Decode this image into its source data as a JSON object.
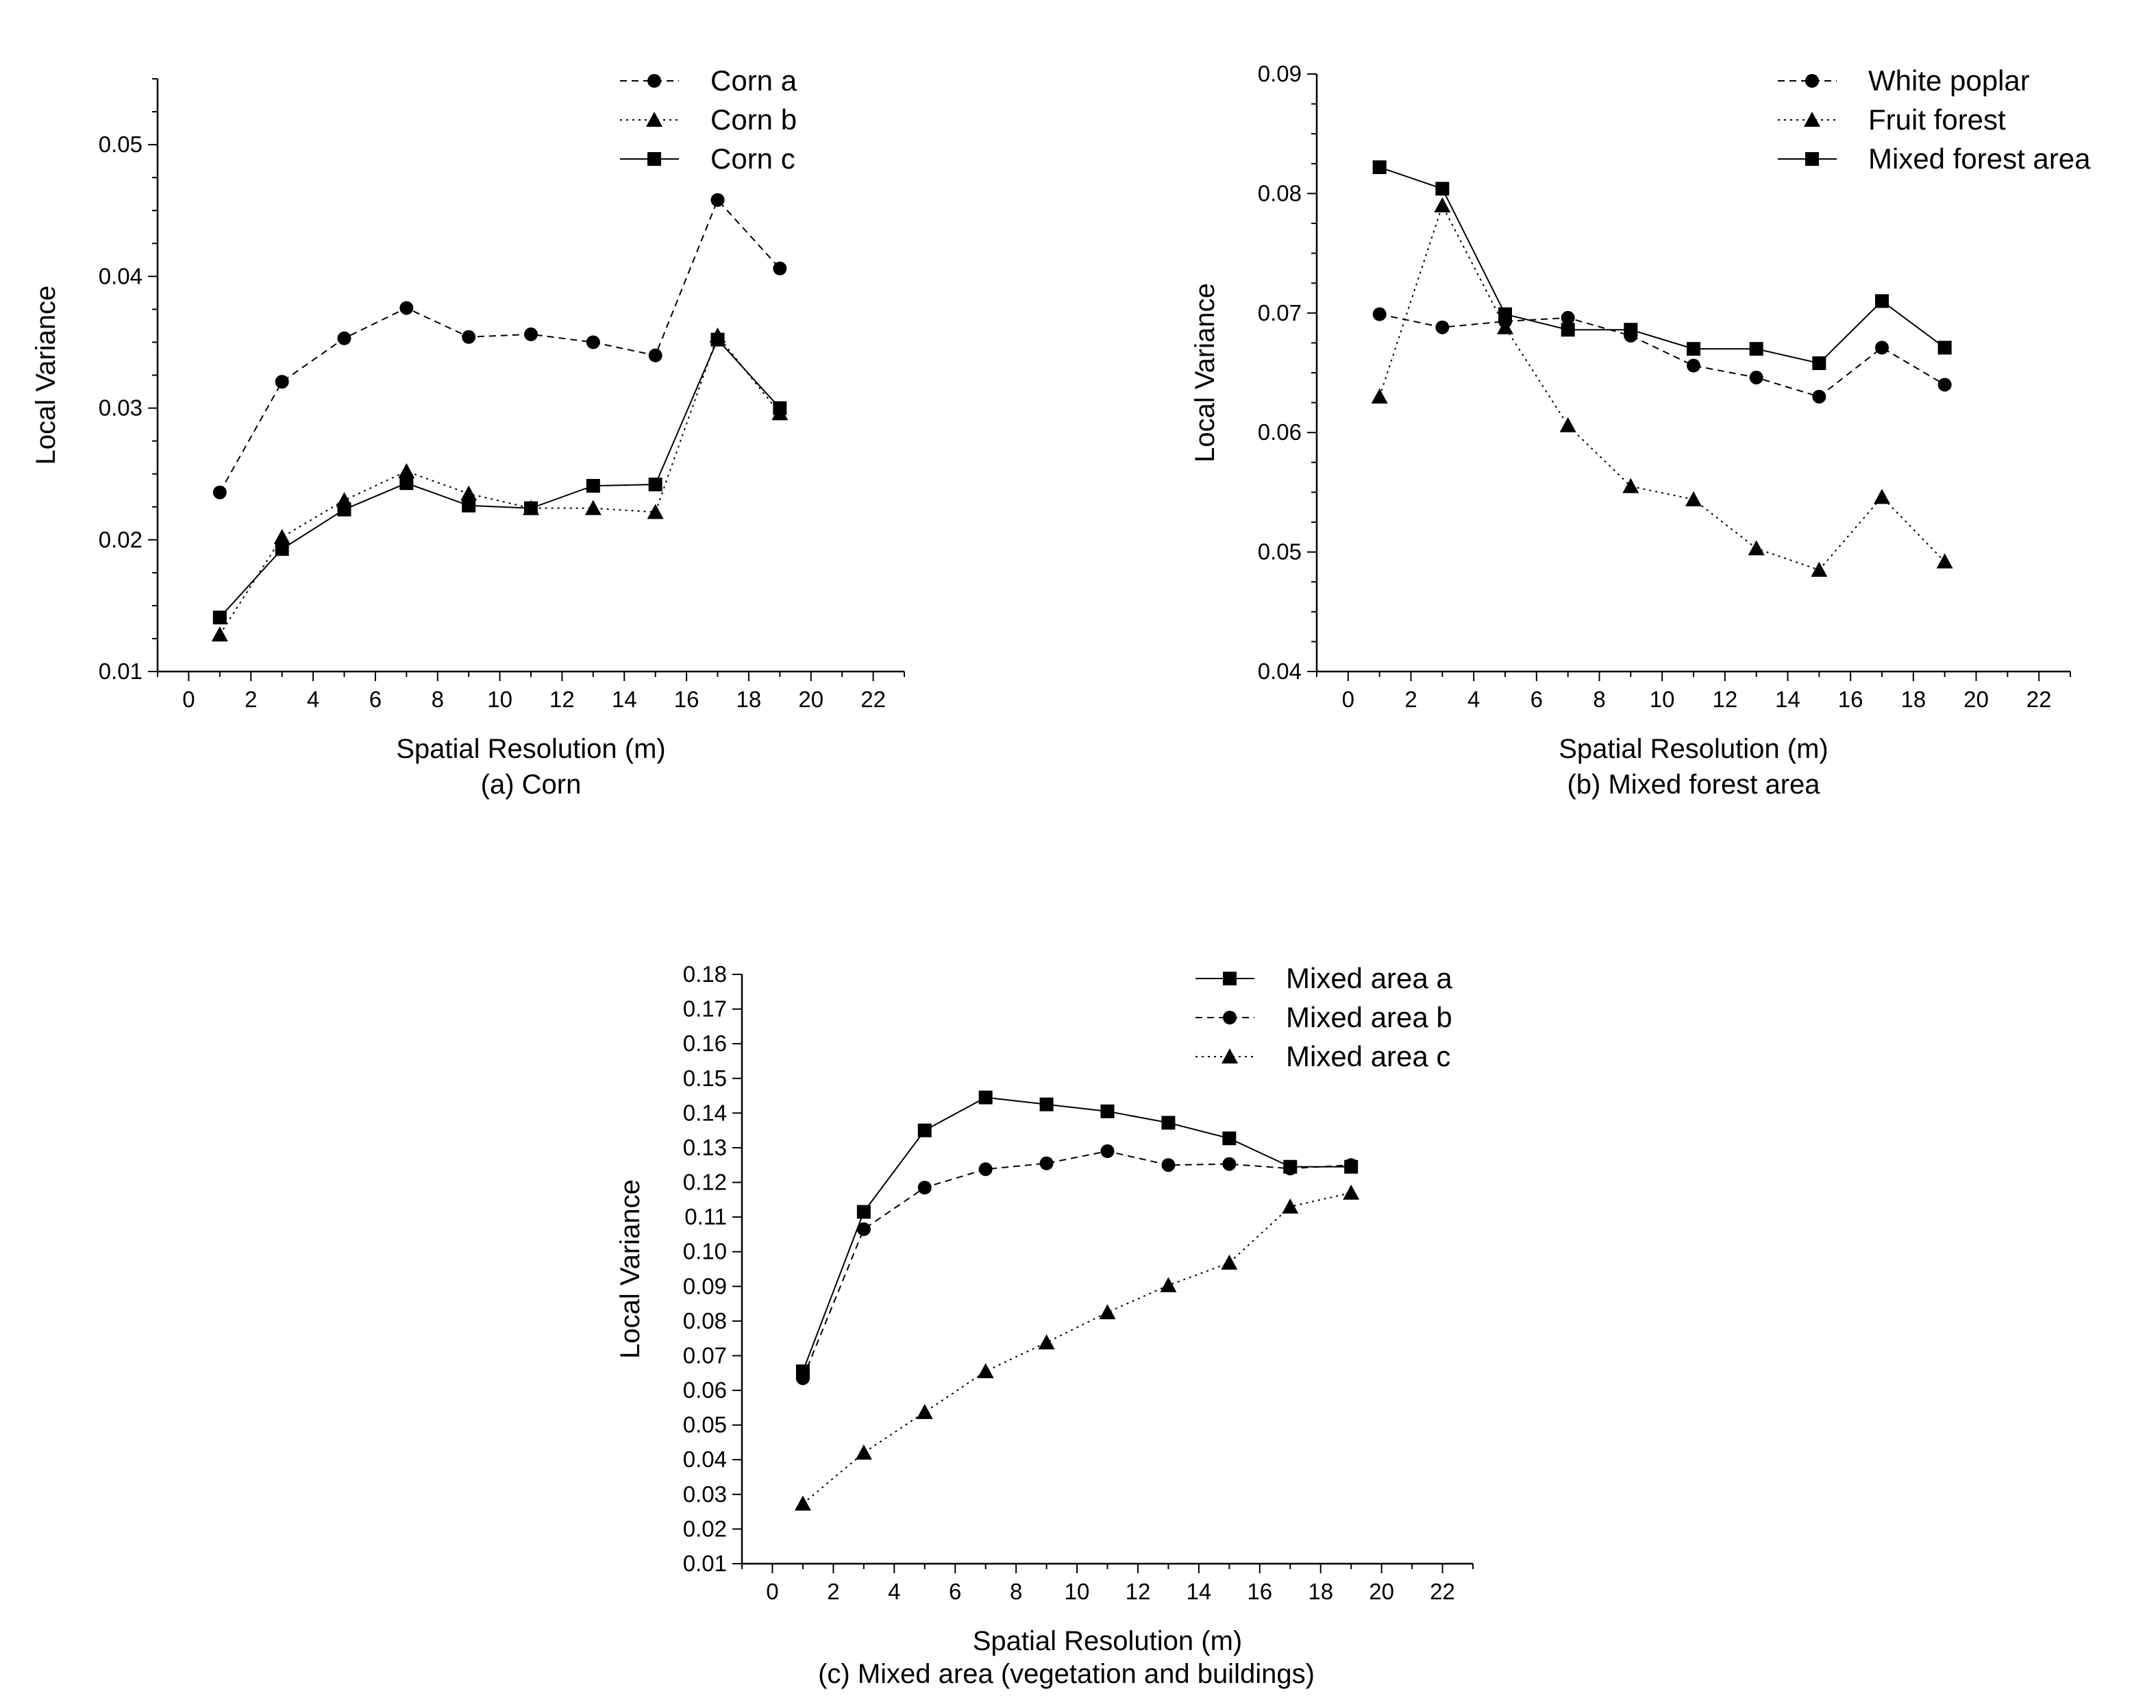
{
  "chart_data": [
    {
      "type": "line",
      "caption": "(a) Corn",
      "xlabel": "Spatial Resolution (m)",
      "ylabel": "Local Variance",
      "xlim": [
        -1,
        23
      ],
      "ylim": [
        0.01,
        0.055
      ],
      "xticks": [
        "0",
        "2",
        "4",
        "6",
        "8",
        "10",
        "12",
        "14",
        "16",
        "18",
        "20",
        "22"
      ],
      "yticks": [
        "0.01",
        "0.02",
        "0.03",
        "0.04",
        "0.05"
      ],
      "legend_position": "top-right",
      "grid": false,
      "x": [
        1,
        3,
        5,
        7,
        9,
        11,
        13,
        15,
        17,
        19
      ],
      "series": [
        {
          "name": "Corn a",
          "marker": "circle",
          "dash": "dashed",
          "values": [
            0.0236,
            0.032,
            0.0353,
            0.0376,
            0.0354,
            0.0356,
            0.035,
            0.034,
            0.0458,
            0.0406
          ]
        },
        {
          "name": "Corn b",
          "marker": "triangle",
          "dash": "dotted",
          "values": [
            0.0128,
            0.0202,
            0.023,
            0.0252,
            0.0235,
            0.0224,
            0.0224,
            0.0221,
            0.0355,
            0.0296
          ]
        },
        {
          "name": "Corn c",
          "marker": "square",
          "dash": "solid",
          "values": [
            0.0141,
            0.0193,
            0.0223,
            0.0243,
            0.0226,
            0.0224,
            0.0241,
            0.0242,
            0.0352,
            0.03
          ]
        }
      ]
    },
    {
      "type": "line",
      "caption": "(b) Mixed forest area",
      "xlabel": "Spatial Resolution (m)",
      "ylabel": "Local Variance",
      "xlim": [
        -1,
        23
      ],
      "ylim": [
        0.04,
        0.09
      ],
      "xticks": [
        "0",
        "2",
        "4",
        "6",
        "8",
        "10",
        "12",
        "14",
        "16",
        "18",
        "20",
        "22"
      ],
      "yticks": [
        "0.04",
        "0.05",
        "0.06",
        "0.07",
        "0.08",
        "0.09"
      ],
      "legend_position": "top-right",
      "grid": false,
      "x": [
        1,
        3,
        5,
        7,
        9,
        11,
        13,
        15,
        17,
        19
      ],
      "series": [
        {
          "name": "White poplar",
          "marker": "circle",
          "dash": "dashed",
          "values": [
            0.0699,
            0.0688,
            0.0693,
            0.0696,
            0.0681,
            0.0656,
            0.0646,
            0.063,
            0.0671,
            0.064
          ]
        },
        {
          "name": "Fruit forest",
          "marker": "triangle",
          "dash": "dotted",
          "values": [
            0.063,
            0.079,
            0.0688,
            0.0606,
            0.0555,
            0.0544,
            0.0503,
            0.0485,
            0.0546,
            0.0492
          ]
        },
        {
          "name": "Mixed forest area",
          "marker": "square",
          "dash": "solid",
          "values": [
            0.0822,
            0.0804,
            0.0699,
            0.0686,
            0.0686,
            0.067,
            0.067,
            0.0658,
            0.071,
            0.0671
          ]
        }
      ]
    },
    {
      "type": "line",
      "caption": "(c) Mixed area (vegetation and buildings)",
      "xlabel": "Spatial Resolution (m)",
      "ylabel": "Local Variance",
      "xlim": [
        -1,
        23
      ],
      "ylim": [
        0.01,
        0.18
      ],
      "xticks": [
        "0",
        "2",
        "4",
        "6",
        "8",
        "10",
        "12",
        "14",
        "16",
        "18",
        "20",
        "22"
      ],
      "yticks": [
        "0.01",
        "0.02",
        "0.03",
        "0.04",
        "0.05",
        "0.06",
        "0.07",
        "0.08",
        "0.09",
        "0.10",
        "0.11",
        "0.12",
        "0.13",
        "0.14",
        "0.15",
        "0.16",
        "0.17",
        "0.18"
      ],
      "legend_position": "top-right",
      "grid": false,
      "x": [
        1,
        3,
        5,
        7,
        9,
        11,
        13,
        15,
        17,
        19
      ],
      "series": [
        {
          "name": "Mixed area a",
          "marker": "square",
          "dash": "solid",
          "values": [
            0.0655,
            0.1115,
            0.135,
            0.1445,
            0.1425,
            0.1405,
            0.1372,
            0.1327,
            0.1245,
            0.1245
          ]
        },
        {
          "name": "Mixed area b",
          "marker": "circle",
          "dash": "dashed",
          "values": [
            0.0635,
            0.1065,
            0.1185,
            0.1238,
            0.1255,
            0.129,
            0.125,
            0.1253,
            0.124,
            0.125
          ]
        },
        {
          "name": "Mixed area c",
          "marker": "triangle",
          "dash": "dotted",
          "values": [
            0.0273,
            0.042,
            0.0537,
            0.0655,
            0.0738,
            0.0825,
            0.0903,
            0.0968,
            0.113,
            0.117
          ]
        }
      ]
    }
  ]
}
